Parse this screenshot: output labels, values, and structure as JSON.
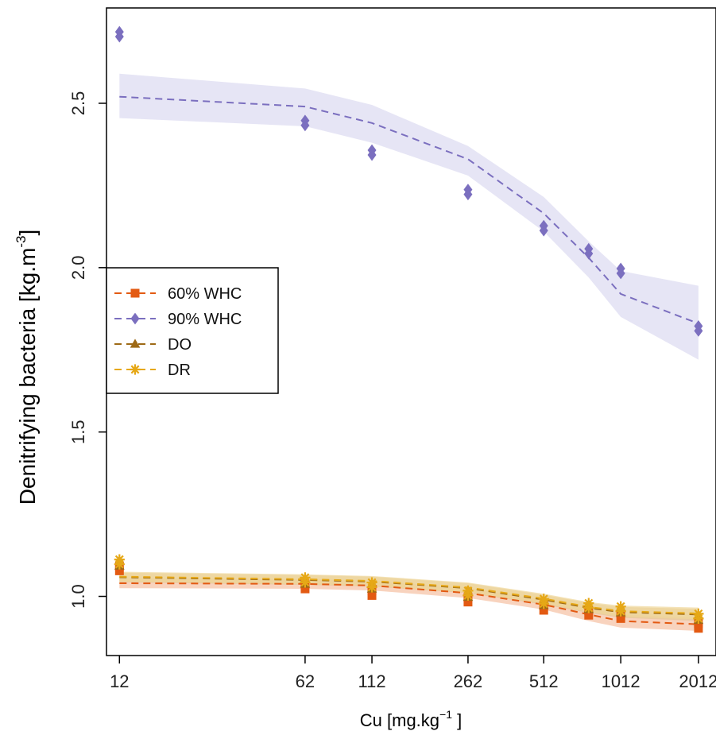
{
  "chart_data": {
    "type": "line",
    "xlabel": {
      "main": "Cu [mg.kg",
      "sup": "−1",
      "tail": " ]"
    },
    "ylabel": {
      "main": "Denitrifying bacteria [kg.m",
      "sup": "-3",
      "tail": "]"
    },
    "x_scale": "log",
    "x_ticks": [
      12,
      62,
      112,
      262,
      512,
      1012,
      2012
    ],
    "y_ticks": [
      1.0,
      1.5,
      2.0,
      2.5
    ],
    "xlim": [
      10.7,
      2350
    ],
    "ylim": [
      0.82,
      2.79
    ],
    "grid": false,
    "legend_position": "center-left",
    "series": [
      {
        "name": "60% WHC",
        "color": "#e35a12",
        "band_color": "#f5c0a3",
        "marker": "square",
        "points": {
          "x": [
            12,
            62,
            112,
            262,
            512,
            762,
            1012,
            2012
          ],
          "y": [
            1.085,
            1.03,
            1.01,
            0.99,
            0.965,
            0.95,
            0.94,
            0.91
          ]
        },
        "fit": {
          "x": [
            12,
            62,
            112,
            262,
            512,
            762,
            1012,
            2012
          ],
          "y": [
            1.04,
            1.038,
            1.033,
            1.01,
            0.975,
            0.945,
            0.925,
            0.915
          ]
        },
        "band_lower": [
          1.025,
          1.023,
          1.018,
          0.995,
          0.96,
          0.925,
          0.905,
          0.895
        ],
        "band_upper": [
          1.055,
          1.053,
          1.048,
          1.025,
          0.99,
          0.965,
          0.945,
          0.935
        ]
      },
      {
        "name": "90% WHC",
        "color": "#7b6fbf",
        "band_color": "#dcdaf1",
        "marker": "diamond",
        "points": {
          "x": [
            12,
            62,
            112,
            262,
            512,
            762,
            1012,
            2012
          ],
          "y": [
            2.71,
            2.44,
            2.35,
            2.23,
            2.12,
            2.05,
            1.99,
            1.815
          ]
        },
        "fit": {
          "x": [
            12,
            62,
            112,
            262,
            512,
            762,
            1012,
            2012
          ],
          "y": [
            2.52,
            2.49,
            2.44,
            2.33,
            2.165,
            2.03,
            1.92,
            1.83
          ]
        },
        "band_lower": [
          2.455,
          2.43,
          2.38,
          2.28,
          2.11,
          1.97,
          1.85,
          1.72
        ],
        "band_upper": [
          2.59,
          2.545,
          2.495,
          2.37,
          2.215,
          2.08,
          1.99,
          1.945
        ]
      },
      {
        "name": "DO",
        "color": "#9e6a16",
        "band_color": "#e4c896",
        "marker": "triangle",
        "points": {
          "x": [
            12,
            62,
            112,
            262,
            512,
            762,
            1012,
            2012
          ],
          "y": [
            1.1,
            1.045,
            1.03,
            1.005,
            0.98,
            0.968,
            0.958,
            0.935
          ]
        },
        "fit": {
          "x": [
            12,
            62,
            112,
            262,
            512,
            762,
            1012,
            2012
          ],
          "y": [
            1.058,
            1.05,
            1.045,
            1.025,
            0.99,
            0.965,
            0.952,
            0.945
          ]
        },
        "band_lower": [
          1.043,
          1.035,
          1.03,
          1.01,
          0.975,
          0.95,
          0.935,
          0.925
        ],
        "band_upper": [
          1.072,
          1.065,
          1.06,
          1.04,
          1.005,
          0.98,
          0.968,
          0.962
        ]
      },
      {
        "name": "DR",
        "color": "#e6a817",
        "band_color": "#efd79a",
        "marker": "asterisk",
        "points": {
          "x": [
            12,
            62,
            112,
            262,
            512,
            762,
            1012,
            2012
          ],
          "y": [
            1.105,
            1.05,
            1.035,
            1.01,
            0.985,
            0.972,
            0.962,
            0.94
          ]
        },
        "fit": {
          "x": [
            12,
            62,
            112,
            262,
            512,
            762,
            1012,
            2012
          ],
          "y": [
            1.06,
            1.052,
            1.047,
            1.027,
            0.993,
            0.968,
            0.955,
            0.948
          ]
        },
        "band_lower": [
          1.045,
          1.037,
          1.032,
          1.012,
          0.978,
          0.953,
          0.938,
          0.93
        ],
        "band_upper": [
          1.075,
          1.067,
          1.062,
          1.042,
          1.008,
          0.983,
          0.972,
          0.966
        ]
      }
    ]
  }
}
